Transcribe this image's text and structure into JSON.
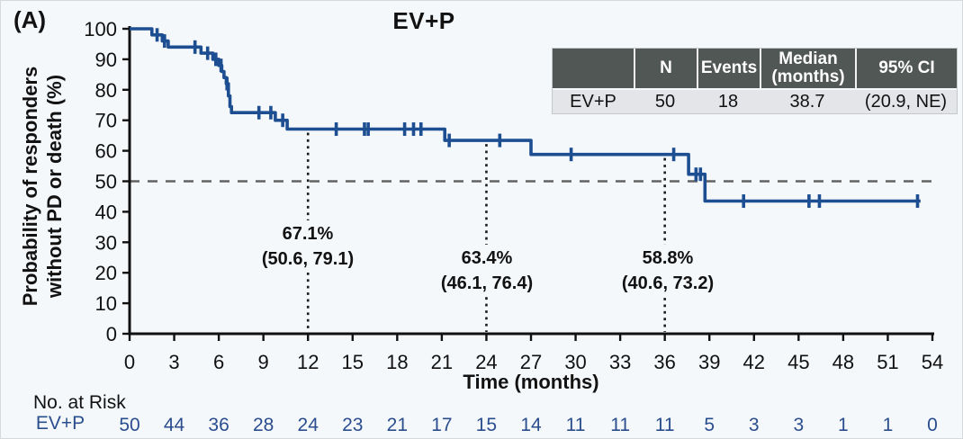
{
  "panel_label": "(A)",
  "summary_table": {
    "col_labels": {
      "group": "",
      "n": "N",
      "events": "Events",
      "median_line1": "Median",
      "median_line2": "(months)",
      "ci": "95% CI"
    },
    "row": {
      "group": "EV+P",
      "n": "50",
      "events": "18",
      "median": "38.7",
      "ci": "(20.9, NE)"
    }
  },
  "chart_data": {
    "type": "line",
    "subtype": "kaplan-meier-step-curve",
    "title": "EV+P",
    "xlabel": "Time (months)",
    "ylabel": "Probability of responders without PD or death (%)",
    "ylabel_lines": [
      "Probability of responders",
      "without PD or death (%)"
    ],
    "xlim": [
      0,
      54
    ],
    "ylim": [
      0,
      100
    ],
    "x_ticks": [
      0,
      3,
      6,
      9,
      12,
      15,
      18,
      21,
      24,
      27,
      30,
      33,
      36,
      39,
      42,
      45,
      48,
      51,
      54
    ],
    "y_ticks": [
      0,
      10,
      20,
      30,
      40,
      50,
      60,
      70,
      80,
      90,
      100
    ],
    "grid": false,
    "reference_line_y": 50,
    "milestones": [
      {
        "t": 12,
        "survival": 67.1,
        "label_pct": "67.1%",
        "label_ci": "(50.6, 79.1)"
      },
      {
        "t": 24,
        "survival": 63.4,
        "label_pct": "63.4%",
        "label_ci": "(46.1, 76.4)"
      },
      {
        "t": 36,
        "survival": 58.8,
        "label_pct": "58.8%",
        "label_ci": "(40.6, 73.2)"
      }
    ],
    "series": [
      {
        "name": "EV+P",
        "color": "#1d4e91",
        "n": 50,
        "events": 18,
        "median_months": 38.7,
        "ci_95": "(20.9, NE)",
        "step_points": [
          [
            0,
            100
          ],
          [
            1.5,
            100
          ],
          [
            1.5,
            98
          ],
          [
            2.2,
            98
          ],
          [
            2.2,
            96
          ],
          [
            2.6,
            96
          ],
          [
            2.6,
            94
          ],
          [
            4.8,
            94
          ],
          [
            4.8,
            92
          ],
          [
            5.6,
            92
          ],
          [
            5.6,
            90
          ],
          [
            6.0,
            90
          ],
          [
            6.0,
            88
          ],
          [
            6.2,
            88
          ],
          [
            6.2,
            86
          ],
          [
            6.35,
            86
          ],
          [
            6.35,
            84
          ],
          [
            6.5,
            84
          ],
          [
            6.5,
            82
          ],
          [
            6.65,
            82
          ],
          [
            6.65,
            78
          ],
          [
            6.75,
            78
          ],
          [
            6.75,
            74.5
          ],
          [
            6.85,
            74.5
          ],
          [
            6.85,
            72.5
          ],
          [
            9.8,
            72.5
          ],
          [
            9.8,
            70
          ],
          [
            10.6,
            70
          ],
          [
            10.6,
            67.1
          ],
          [
            21.2,
            67.1
          ],
          [
            21.2,
            63.4
          ],
          [
            27,
            63.4
          ],
          [
            27,
            58.8
          ],
          [
            37.6,
            58.8
          ],
          [
            37.6,
            52.3
          ],
          [
            38.7,
            52.3
          ],
          [
            38.7,
            43.5
          ],
          [
            53.2,
            43.5
          ]
        ],
        "censor_marks": [
          [
            1.85,
            98
          ],
          [
            2.35,
            96
          ],
          [
            4.4,
            94
          ],
          [
            5.25,
            92
          ],
          [
            5.8,
            90
          ],
          [
            6.15,
            88
          ],
          [
            6.55,
            82
          ],
          [
            8.7,
            72.5
          ],
          [
            9.5,
            72.5
          ],
          [
            10.3,
            70
          ],
          [
            13.9,
            67.1
          ],
          [
            15.8,
            67.1
          ],
          [
            16.05,
            67.1
          ],
          [
            18.5,
            67.1
          ],
          [
            19.1,
            67.1
          ],
          [
            19.6,
            67.1
          ],
          [
            21.5,
            63.4
          ],
          [
            24.9,
            63.4
          ],
          [
            29.7,
            58.8
          ],
          [
            36.6,
            58.8
          ],
          [
            38.1,
            52.3
          ],
          [
            38.4,
            52.3
          ],
          [
            41.3,
            43.5
          ],
          [
            45.7,
            43.5
          ],
          [
            46.4,
            43.5
          ],
          [
            53.0,
            43.5
          ]
        ]
      }
    ],
    "no_at_risk": {
      "section_label": "No. at Risk",
      "label": "EV+P",
      "times": [
        0,
        3,
        6,
        9,
        12,
        15,
        18,
        21,
        24,
        27,
        30,
        33,
        36,
        39,
        42,
        45,
        48,
        51,
        54
      ],
      "counts": [
        50,
        44,
        36,
        28,
        24,
        23,
        21,
        17,
        15,
        14,
        11,
        11,
        11,
        5,
        3,
        3,
        1,
        1,
        0
      ]
    },
    "legend_position": "none"
  }
}
